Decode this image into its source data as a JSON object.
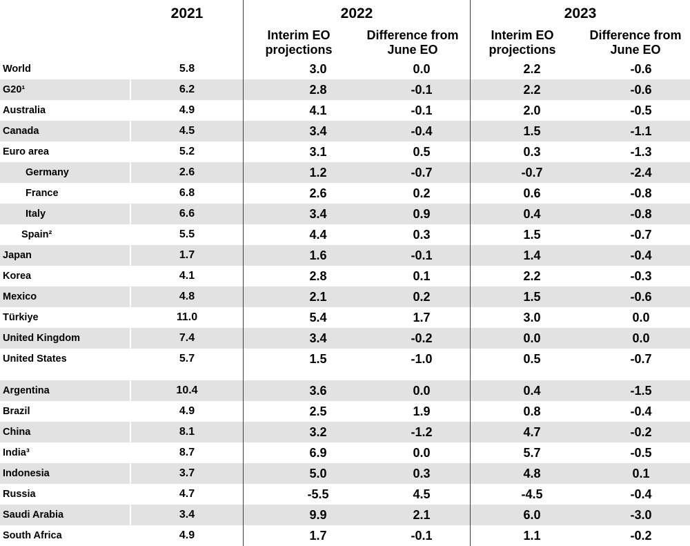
{
  "colors": {
    "row_shade": "#e2e2e2",
    "divider_line": "#3b3b3b",
    "text": "#000000",
    "background": "#ffffff"
  },
  "header": {
    "years": [
      "2021",
      "2022",
      "2023"
    ],
    "subcolumns": {
      "projections": "Interim EO projections",
      "difference": "Difference from June EO"
    }
  },
  "chart_data": {
    "type": "table",
    "columns": [
      "",
      "2021",
      "2022 Interim EO projections",
      "2022 Difference from June EO",
      "2023 Interim EO projections",
      "2023 Difference from June EO"
    ],
    "rows": [
      {
        "name": "World",
        "sub": false,
        "shaded": false,
        "gap": false,
        "values": [
          "5.8",
          "3.0",
          "0.0",
          "2.2",
          "-0.6"
        ]
      },
      {
        "name": "G20¹",
        "sub": false,
        "shaded": true,
        "gap": false,
        "values": [
          "6.2",
          "2.8",
          "-0.1",
          "2.2",
          "-0.6"
        ]
      },
      {
        "name": "Australia",
        "sub": false,
        "shaded": false,
        "gap": false,
        "values": [
          "4.9",
          "4.1",
          "-0.1",
          "2.0",
          "-0.5"
        ]
      },
      {
        "name": "Canada",
        "sub": false,
        "shaded": true,
        "gap": false,
        "values": [
          "4.5",
          "3.4",
          "-0.4",
          "1.5",
          "-1.1"
        ]
      },
      {
        "name": "Euro area",
        "sub": false,
        "shaded": false,
        "gap": false,
        "values": [
          "5.2",
          "3.1",
          "0.5",
          "0.3",
          "-1.3"
        ]
      },
      {
        "name": "Germany",
        "sub": true,
        "shaded": true,
        "gap": false,
        "values": [
          "2.6",
          "1.2",
          "-0.7",
          "-0.7",
          "-2.4"
        ]
      },
      {
        "name": "France",
        "sub": true,
        "shaded": false,
        "gap": false,
        "values": [
          "6.8",
          "2.6",
          "0.2",
          "0.6",
          "-0.8"
        ]
      },
      {
        "name": "Italy",
        "sub": true,
        "shaded": true,
        "gap": false,
        "values": [
          "6.6",
          "3.4",
          "0.9",
          "0.4",
          "-0.8"
        ]
      },
      {
        "name": "Spain²",
        "sub": "b",
        "shaded": false,
        "gap": false,
        "values": [
          "5.5",
          "4.4",
          "0.3",
          "1.5",
          "-0.7"
        ]
      },
      {
        "name": "Japan",
        "sub": false,
        "shaded": true,
        "gap": false,
        "values": [
          "1.7",
          "1.6",
          "-0.1",
          "1.4",
          "-0.4"
        ]
      },
      {
        "name": "Korea",
        "sub": false,
        "shaded": false,
        "gap": false,
        "values": [
          "4.1",
          "2.8",
          "0.1",
          "2.2",
          "-0.3"
        ]
      },
      {
        "name": "Mexico",
        "sub": false,
        "shaded": true,
        "gap": false,
        "values": [
          "4.8",
          "2.1",
          "0.2",
          "1.5",
          "-0.6"
        ]
      },
      {
        "name": "Türkiye",
        "sub": false,
        "shaded": false,
        "gap": false,
        "values": [
          "11.0",
          "5.4",
          "1.7",
          "3.0",
          "0.0"
        ]
      },
      {
        "name": "United Kingdom",
        "sub": false,
        "shaded": true,
        "gap": false,
        "values": [
          "7.4",
          "3.4",
          "-0.2",
          "0.0",
          "0.0"
        ]
      },
      {
        "name": "United States",
        "sub": false,
        "shaded": false,
        "gap": false,
        "values": [
          "5.7",
          "1.5",
          "-1.0",
          "0.5",
          "-0.7"
        ]
      },
      {
        "name": "Argentina",
        "sub": false,
        "shaded": true,
        "gap": true,
        "values": [
          "10.4",
          "3.6",
          "0.0",
          "0.4",
          "-1.5"
        ]
      },
      {
        "name": "Brazil",
        "sub": false,
        "shaded": false,
        "gap": false,
        "values": [
          "4.9",
          "2.5",
          "1.9",
          "0.8",
          "-0.4"
        ]
      },
      {
        "name": "China",
        "sub": false,
        "shaded": true,
        "gap": false,
        "values": [
          "8.1",
          "3.2",
          "-1.2",
          "4.7",
          "-0.2"
        ]
      },
      {
        "name": "India³",
        "sub": false,
        "shaded": false,
        "gap": false,
        "values": [
          "8.7",
          "6.9",
          "0.0",
          "5.7",
          "-0.5"
        ]
      },
      {
        "name": "Indonesia",
        "sub": false,
        "shaded": true,
        "gap": false,
        "values": [
          "3.7",
          "5.0",
          "0.3",
          "4.8",
          "0.1"
        ]
      },
      {
        "name": "Russia",
        "sub": false,
        "shaded": false,
        "gap": false,
        "values": [
          "4.7",
          "-5.5",
          "4.5",
          "-4.5",
          "-0.4"
        ]
      },
      {
        "name": "Saudi Arabia",
        "sub": false,
        "shaded": true,
        "gap": false,
        "values": [
          "3.4",
          "9.9",
          "2.1",
          "6.0",
          "-3.0"
        ]
      },
      {
        "name": "South Africa",
        "sub": false,
        "shaded": false,
        "gap": false,
        "values": [
          "4.9",
          "1.7",
          "-0.1",
          "1.1",
          "-0.2"
        ]
      }
    ]
  }
}
